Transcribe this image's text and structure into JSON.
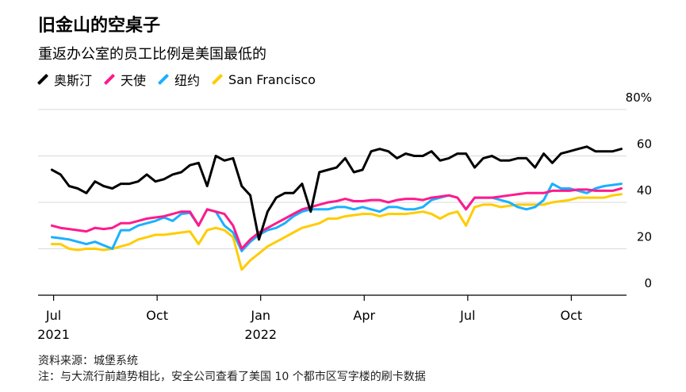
{
  "header": {
    "title": "旧金山的空桌子",
    "subtitle": "重返办公室的员工比例是美国最低的"
  },
  "footer": {
    "source": "资料来源：城堡系统",
    "note": "注：与大流行前趋势相比，安全公司查看了美国 10 个都市区写字楼的刷卡数据"
  },
  "chart_data": {
    "type": "line",
    "ylim": [
      0,
      80
    ],
    "yticks": [
      0,
      20,
      40,
      60,
      80
    ],
    "ytick_labels": [
      "0",
      "20",
      "40",
      "60",
      "80%"
    ],
    "x_ticks": [
      {
        "x": 0,
        "label": "Jul",
        "year": "2021"
      },
      {
        "x": 3,
        "label": "Oct",
        "year": ""
      },
      {
        "x": 6,
        "label": "Jan",
        "year": "2022"
      },
      {
        "x": 9,
        "label": "Apr",
        "year": ""
      },
      {
        "x": 12,
        "label": "Jul",
        "year": ""
      },
      {
        "x": 15,
        "label": "Oct",
        "year": ""
      }
    ],
    "x_range": [
      -0.45,
      16.6
    ],
    "x": [
      -0.05,
      0.2,
      0.45,
      0.7,
      0.95,
      1.2,
      1.45,
      1.7,
      1.95,
      2.2,
      2.45,
      2.7,
      2.95,
      3.2,
      3.45,
      3.7,
      3.95,
      4.2,
      4.45,
      4.7,
      4.95,
      5.2,
      5.45,
      5.7,
      5.95,
      6.2,
      6.45,
      6.7,
      6.95,
      7.2,
      7.45,
      7.7,
      7.95,
      8.2,
      8.45,
      8.7,
      8.95,
      9.2,
      9.45,
      9.7,
      9.95,
      10.2,
      10.45,
      10.7,
      10.95,
      11.2,
      11.45,
      11.7,
      11.95,
      12.2,
      12.45,
      12.7,
      12.95,
      13.2,
      13.45,
      13.7,
      13.95,
      14.2,
      14.45,
      14.7,
      14.95,
      15.2,
      15.45,
      15.7,
      15.95,
      16.2,
      16.45
    ],
    "series": [
      {
        "name": "奥斯汀",
        "color": "#000000",
        "values": [
          54,
          52,
          47,
          46,
          44,
          49,
          47,
          46,
          48,
          48,
          49,
          52,
          49,
          50,
          52,
          53,
          56,
          57,
          47,
          60,
          58,
          59,
          47,
          43,
          24,
          36,
          42,
          44,
          44,
          48,
          36,
          53,
          54,
          55,
          59,
          53,
          54,
          62,
          63,
          62,
          59,
          61,
          60,
          60,
          62,
          58,
          59,
          61,
          61,
          55,
          59,
          60,
          58,
          58,
          59,
          59,
          55,
          61,
          57,
          61,
          62,
          63,
          64,
          62,
          62,
          62,
          63
        ]
      },
      {
        "name": "天使",
        "color": "#ff1a8c",
        "values": [
          30,
          29,
          28.5,
          28,
          27.5,
          29,
          28.5,
          29,
          31,
          31,
          32,
          33,
          33.5,
          34,
          35,
          36,
          36,
          30,
          37,
          36,
          35,
          30,
          20,
          24,
          27,
          29,
          31,
          33,
          35,
          37,
          38,
          39,
          40,
          40.5,
          41.5,
          40.5,
          40.5,
          41,
          41,
          40,
          41,
          41.5,
          41.5,
          41,
          42,
          42.5,
          43,
          42,
          37,
          42,
          42,
          42,
          42.5,
          43,
          43.5,
          44,
          44,
          44,
          45,
          45,
          45,
          45.5,
          45.5,
          45,
          45,
          45,
          46
        ]
      },
      {
        "name": "纽约",
        "color": "#1ab0ff",
        "values": [
          25,
          24.5,
          24,
          23,
          22,
          23,
          21.5,
          20,
          28,
          28,
          30,
          31,
          32,
          33.5,
          32,
          35,
          35.5,
          30,
          37,
          36,
          30,
          27,
          19,
          23,
          26,
          28,
          29,
          31,
          34,
          36,
          37,
          37,
          37,
          38,
          38,
          37,
          38,
          37,
          36,
          38,
          38,
          37,
          37,
          38,
          41,
          42,
          43,
          42,
          37,
          42,
          42,
          42,
          41,
          40,
          38,
          37,
          38,
          41,
          48,
          46,
          46,
          45,
          44,
          46,
          47,
          47.5,
          48
        ]
      },
      {
        "name": "San Francisco",
        "color": "#ffcc00",
        "values": [
          22,
          22,
          20,
          19.5,
          20,
          20,
          19.5,
          20,
          21,
          22,
          24,
          25,
          26,
          26,
          26.5,
          27,
          27.5,
          22,
          28,
          29,
          28,
          25,
          11,
          15,
          18,
          21,
          23,
          25,
          27,
          29,
          30,
          31,
          33,
          33,
          34,
          34.5,
          35,
          35,
          34,
          35,
          35,
          35,
          35.5,
          36,
          35,
          33,
          35,
          36,
          30,
          38,
          39,
          39,
          38,
          38.5,
          39,
          39,
          39,
          39,
          40,
          40.5,
          41,
          42,
          42,
          42,
          42,
          43,
          43.5
        ]
      }
    ]
  }
}
